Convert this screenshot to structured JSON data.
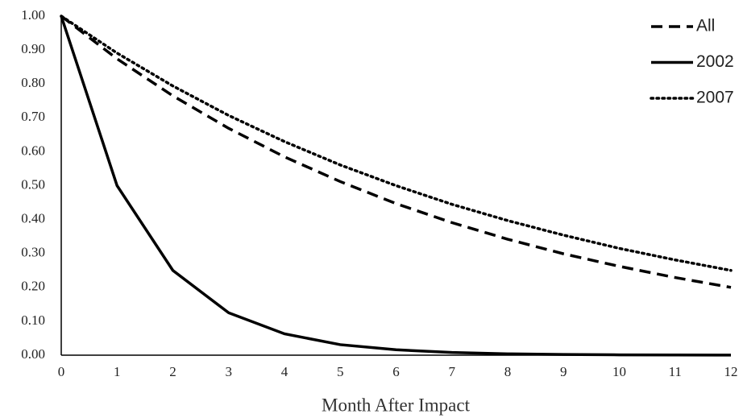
{
  "chart_data": {
    "type": "line",
    "x_label": "Month After Impact",
    "x": [
      0,
      1,
      2,
      3,
      4,
      5,
      6,
      7,
      8,
      9,
      10,
      11,
      12
    ],
    "xlim": [
      0,
      12
    ],
    "xticks": [
      0,
      1,
      2,
      3,
      4,
      5,
      6,
      7,
      8,
      9,
      10,
      11,
      12
    ],
    "ylim": [
      0,
      1
    ],
    "yticks": [
      {
        "value": 0,
        "label": "0.00"
      },
      {
        "value": 0.1,
        "label": "0.10"
      },
      {
        "value": 0.2,
        "label": "0.20"
      },
      {
        "value": 0.3,
        "label": "0.30"
      },
      {
        "value": 0.4,
        "label": "0.40"
      },
      {
        "value": 0.5,
        "label": "0.50"
      },
      {
        "value": 0.6,
        "label": "0.60"
      },
      {
        "value": 0.7,
        "label": "0.70"
      },
      {
        "value": 0.8,
        "label": "0.80"
      },
      {
        "value": 0.9,
        "label": "0.90"
      },
      {
        "value": 1,
        "label": "1.00"
      }
    ],
    "grid": false,
    "legend": "top-right",
    "series": [
      {
        "name": "All",
        "color": "#000000",
        "line_style": "dashed",
        "values": [
          1,
          0.874,
          0.765,
          0.669,
          0.585,
          0.512,
          0.447,
          0.391,
          0.342,
          0.299,
          0.262,
          0.229,
          0.2
        ]
      },
      {
        "name": "2002",
        "color": "#000000",
        "line_style": "solid",
        "values": [
          1,
          0.5,
          0.25,
          0.125,
          0.063,
          0.031,
          0.016,
          0.008,
          0.004,
          0.002,
          0.001,
          0.0005,
          0.0002
        ]
      },
      {
        "name": "2007",
        "color": "#000000",
        "line_style": "dotted",
        "values": [
          1,
          0.891,
          0.794,
          0.707,
          0.63,
          0.561,
          0.5,
          0.445,
          0.397,
          0.354,
          0.315,
          0.281,
          0.25
        ]
      }
    ]
  }
}
